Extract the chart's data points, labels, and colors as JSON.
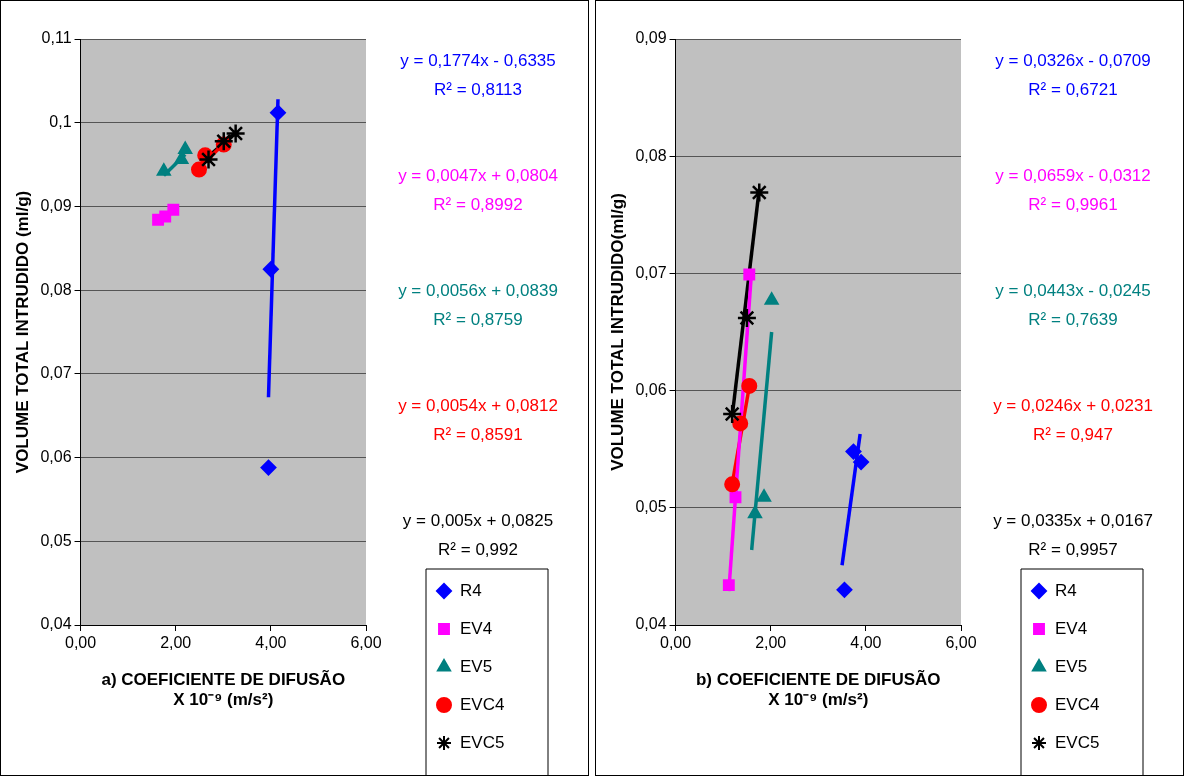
{
  "chart_data": [
    {
      "type": "scatter",
      "xlabel": "a) COEFICIENTE DE DIFUSÃO\nX 10⁻⁹ (m/s²)",
      "ylabel": "VOLUME TOTAL INTRUDIDO (ml/g)",
      "xlim": [
        0,
        6
      ],
      "xticks": [
        {
          "value": 0,
          "label": "0,00"
        },
        {
          "value": 2,
          "label": "2,00"
        },
        {
          "value": 4,
          "label": "4,00"
        },
        {
          "value": 6,
          "label": "6,00"
        }
      ],
      "ylim": [
        0.04,
        0.11
      ],
      "yticks": [
        {
          "value": 0.04,
          "label": "0,04"
        },
        {
          "value": 0.05,
          "label": "0,05"
        },
        {
          "value": 0.06,
          "label": "0,06"
        },
        {
          "value": 0.07,
          "label": "0,07"
        },
        {
          "value": 0.08,
          "label": "0,08"
        },
        {
          "value": 0.09,
          "label": "0,09"
        },
        {
          "value": 0.1,
          "label": "0,1"
        },
        {
          "value": 0.11,
          "label": "0,11"
        }
      ],
      "grid": "y",
      "legend": "bottom right",
      "series": [
        {
          "name": "R4",
          "color": "#0000ff",
          "marker": "diamond",
          "x": [
            4.15,
            4.0,
            3.95
          ],
          "values": [
            0.1012,
            0.0825,
            0.0588
          ]
        },
        {
          "name": "EV4",
          "color": "#ff00ff",
          "marker": "square",
          "x": [
            1.95,
            1.78,
            1.63
          ],
          "values": [
            0.0896,
            0.0888,
            0.0884
          ]
        },
        {
          "name": "EV5",
          "color": "#008080",
          "marker": "triangle",
          "x": [
            2.2,
            2.12,
            1.75
          ],
          "values": [
            0.0968,
            0.0956,
            0.0942
          ]
        },
        {
          "name": "EVC4",
          "color": "#ff0000",
          "marker": "circle",
          "x": [
            2.49,
            2.62,
            3.01
          ],
          "values": [
            0.0944,
            0.0961,
            0.0974
          ]
        },
        {
          "name": "EVC5",
          "color": "#000000",
          "marker": "cross",
          "x": [
            3.26,
            3.01,
            2.69
          ],
          "values": [
            0.0987,
            0.0978,
            0.0956
          ]
        },
        {
          "type": "line",
          "color": "#0000ff",
          "marker": "none",
          "x": [
            3.95,
            4.15
          ],
          "values": [
            0.0672,
            0.1028
          ]
        },
        {
          "type": "line",
          "color": "#008080",
          "marker": "none",
          "x": [
            1.75,
            2.2
          ],
          "values": [
            0.0937,
            0.0962
          ]
        },
        {
          "type": "line",
          "color": "#ff0000",
          "marker": "none",
          "x": [
            2.49,
            3.01
          ],
          "values": [
            0.0946,
            0.0975
          ]
        },
        {
          "type": "line",
          "color": "#000000",
          "marker": "none",
          "x": [
            2.69,
            3.26
          ],
          "values": [
            0.096,
            0.0988
          ]
        }
      ],
      "annotations": [
        "y = 0,1774x - 0,6335",
        "R² = 0,8113",
        "y = 0,0047x + 0,0804",
        "R² = 0,8992",
        "y = 0,0056x + 0,0839",
        "R² = 0,8759",
        "y = 0,0054x + 0,0812",
        "R² = 0,8591",
        "y = 0,005x + 0,0825",
        "R² = 0,992"
      ]
    },
    {
      "type": "scatter",
      "xlabel": "b) COEFICIENTE DE DIFUSÃO\nX 10⁻⁹ (m/s²)",
      "ylabel": "VOLUME TOTAL INTRUDIDO(ml/g)",
      "xlim": [
        0,
        6
      ],
      "xticks": [
        {
          "value": 0,
          "label": "0,00"
        },
        {
          "value": 2,
          "label": "2,00"
        },
        {
          "value": 4,
          "label": "4,00"
        },
        {
          "value": 6,
          "label": "6,00"
        }
      ],
      "ylim": [
        0.04,
        0.09
      ],
      "yticks": [
        {
          "value": 0.04,
          "label": "0,04"
        },
        {
          "value": 0.05,
          "label": "0,05"
        },
        {
          "value": 0.06,
          "label": "0,06"
        },
        {
          "value": 0.07,
          "label": "0,07"
        },
        {
          "value": 0.08,
          "label": "0,08"
        },
        {
          "value": 0.09,
          "label": "0,09"
        }
      ],
      "grid": "y",
      "legend": "bottom right",
      "series": [
        {
          "name": "R4",
          "color": "#0000ff",
          "marker": "diamond",
          "x": [
            3.55,
            3.74,
            3.9
          ],
          "values": [
            0.043,
            0.0548,
            0.0539
          ]
        },
        {
          "name": "EV4",
          "color": "#ff00ff",
          "marker": "square",
          "x": [
            1.55,
            1.26,
            1.12
          ],
          "values": [
            0.0699,
            0.0509,
            0.0434
          ]
        },
        {
          "name": "EV5",
          "color": "#008080",
          "marker": "triangle",
          "x": [
            2.02,
            1.86,
            1.67
          ],
          "values": [
            0.0677,
            0.0509,
            0.0495
          ]
        },
        {
          "name": "EVC4",
          "color": "#ff0000",
          "marker": "circle",
          "x": [
            1.55,
            1.36,
            1.19
          ],
          "values": [
            0.0604,
            0.0572,
            0.052
          ]
        },
        {
          "name": "EVC5",
          "color": "#000000",
          "marker": "cross",
          "x": [
            1.76,
            1.5,
            1.19
          ],
          "values": [
            0.0769,
            0.0662,
            0.058
          ]
        },
        {
          "type": "line",
          "color": "#0000ff",
          "marker": "none",
          "x": [
            3.5,
            3.88
          ],
          "values": [
            0.0451,
            0.0563
          ]
        },
        {
          "type": "line",
          "color": "#ff00ff",
          "marker": "none",
          "x": [
            1.12,
            1.6
          ],
          "values": [
            0.0429,
            0.0703
          ]
        },
        {
          "type": "line",
          "color": "#008080",
          "marker": "none",
          "x": [
            1.6,
            2.02
          ],
          "values": [
            0.0464,
            0.065
          ]
        },
        {
          "type": "line",
          "color": "#ff0000",
          "marker": "none",
          "x": [
            1.19,
            1.57
          ],
          "values": [
            0.052,
            0.0608
          ]
        },
        {
          "type": "line",
          "color": "#000000",
          "marker": "none",
          "x": [
            1.19,
            1.76
          ],
          "values": [
            0.0578,
            0.0772
          ]
        }
      ],
      "annotations": [
        "y = 0,0326x - 0,0709",
        "R² = 0,6721",
        "y = 0,0659x - 0,0312",
        "R² = 0,9961",
        "y = 0,0443x - 0,0245",
        "R² = 0,7639",
        "y = 0,0246x + 0,0231",
        "R² = 0,947",
        "y = 0,0335x + 0,0167",
        "R² = 0,9957"
      ]
    }
  ]
}
